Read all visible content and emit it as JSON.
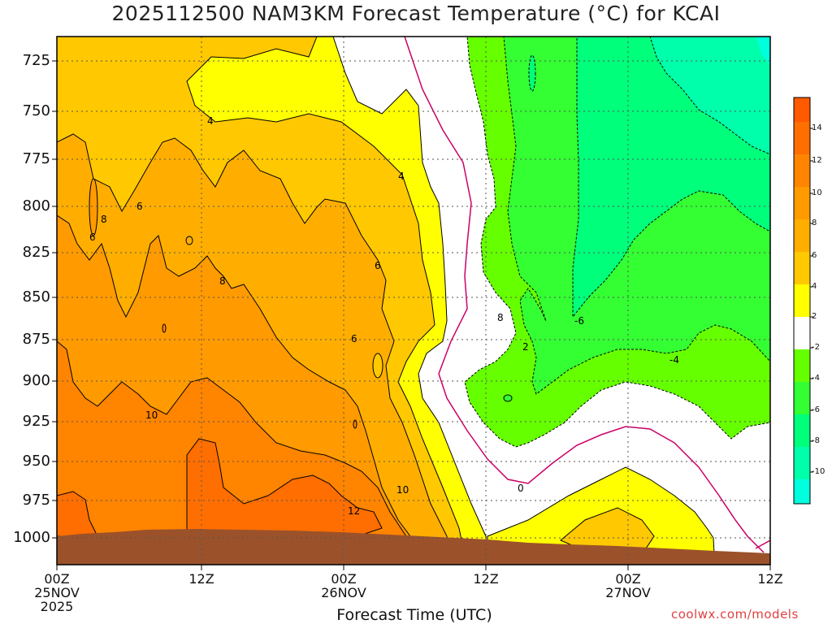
{
  "title": "2025112500 NAM3KM Forecast Temperature (°C) for KCAI",
  "credit": "coolwx.com/models",
  "chart_data": {
    "type": "heatmap",
    "title": "2025112500 NAM3KM Forecast Temperature (°C) for KCAI",
    "xlabel": "Forecast Time (UTC)",
    "ylabel": "",
    "pressure_levels_hpa": [
      725,
      750,
      775,
      800,
      825,
      850,
      875,
      900,
      925,
      950,
      975,
      1000
    ],
    "y_ticks": [
      "725",
      "750",
      "775",
      "800",
      "825",
      "850",
      "875",
      "900",
      "925",
      "950",
      "975",
      "1000"
    ],
    "x_ticks": [
      {
        "line1": "00Z",
        "line2": "25NOV",
        "line3": "2025"
      },
      {
        "line1": "12Z",
        "line2": "",
        "line3": ""
      },
      {
        "line1": "00Z",
        "line2": "26NOV",
        "line3": ""
      },
      {
        "line1": "12Z",
        "line2": "",
        "line3": ""
      },
      {
        "line1": "00Z",
        "line2": "27NOV",
        "line3": ""
      },
      {
        "line1": "12Z",
        "line2": "",
        "line3": ""
      }
    ],
    "forecast_hours": [
      0,
      12,
      24,
      36,
      48,
      60
    ],
    "colorbar": {
      "labels": [
        "14",
        "12",
        "10",
        "8",
        "6",
        "4",
        "2",
        "-2",
        "-4",
        "-6",
        "-8",
        "-10"
      ],
      "bands": [
        {
          "range": "14 to 16",
          "color": "#ff5a00"
        },
        {
          "range": "12 to 14",
          "color": "#ff6e00"
        },
        {
          "range": "10 to 12",
          "color": "#ff8400"
        },
        {
          "range": "8 to 10",
          "color": "#ff9a00"
        },
        {
          "range": "6 to 8",
          "color": "#ffae00"
        },
        {
          "range": "4 to 6",
          "color": "#ffc800"
        },
        {
          "range": "2 to 4",
          "color": "#ffff00"
        },
        {
          "range": "-2 to 2",
          "color": "#ffffff"
        },
        {
          "range": "-4 to -2",
          "color": "#66ff00"
        },
        {
          "range": "-6 to -4",
          "color": "#33ff33"
        },
        {
          "range": "-8 to -6",
          "color": "#00ff7a"
        },
        {
          "range": "-10 to -8",
          "color": "#00ffaa"
        },
        {
          "range": "< -10",
          "color": "#00ffdd"
        }
      ]
    },
    "contour_labels": [
      "4",
      "4",
      "6",
      "6",
      "8",
      "8",
      "6",
      "6",
      "10",
      "8",
      "12",
      "10",
      "2",
      "0",
      "-6",
      "-4"
    ],
    "colors": {
      "terrain": "#9b522b",
      "zero_line": "#cc0066",
      "grid": "#555555"
    }
  }
}
